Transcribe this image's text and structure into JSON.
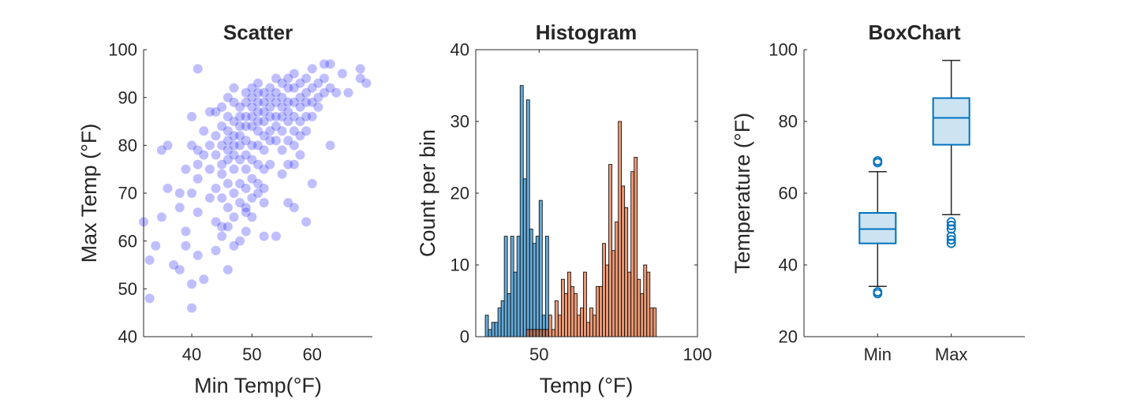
{
  "chart_data": [
    {
      "type": "scatter",
      "title": "Scatter",
      "xlabel": "Min Temp(°F)",
      "ylabel": "Max Temp (°F)",
      "xlim": [
        32,
        70
      ],
      "ylim": [
        40,
        100
      ],
      "xticks": [
        40,
        50,
        60
      ],
      "yticks": [
        40,
        50,
        60,
        70,
        80,
        90,
        100
      ],
      "grid": false,
      "marker_color": "#0000ff",
      "marker_alpha": 0.25,
      "points": [
        [
          32,
          64
        ],
        [
          33,
          48
        ],
        [
          33,
          56
        ],
        [
          34,
          59
        ],
        [
          35,
          65
        ],
        [
          35,
          79
        ],
        [
          36,
          71
        ],
        [
          36,
          80
        ],
        [
          37,
          55
        ],
        [
          38,
          54
        ],
        [
          38,
          70
        ],
        [
          38,
          67
        ],
        [
          39,
          62
        ],
        [
          39,
          75
        ],
        [
          39,
          59
        ],
        [
          40,
          51
        ],
        [
          40,
          46
        ],
        [
          40,
          70
        ],
        [
          40,
          80
        ],
        [
          40,
          86
        ],
        [
          41,
          96
        ],
        [
          41,
          79
        ],
        [
          41,
          76
        ],
        [
          41,
          73
        ],
        [
          41,
          66
        ],
        [
          41,
          57
        ],
        [
          42,
          52
        ],
        [
          42,
          83
        ],
        [
          42,
          78
        ],
        [
          43,
          87
        ],
        [
          43,
          80
        ],
        [
          43,
          75
        ],
        [
          43,
          69
        ],
        [
          44,
          87
        ],
        [
          44,
          82
        ],
        [
          44,
          78
        ],
        [
          44,
          58
        ],
        [
          44,
          64
        ],
        [
          44,
          71
        ],
        [
          45,
          88
        ],
        [
          45,
          84
        ],
        [
          45,
          80
        ],
        [
          45,
          76
        ],
        [
          45,
          74
        ],
        [
          45,
          69
        ],
        [
          45,
          63
        ],
        [
          45,
          61
        ],
        [
          46,
          90
        ],
        [
          46,
          86
        ],
        [
          46,
          83
        ],
        [
          46,
          81
        ],
        [
          46,
          79
        ],
        [
          46,
          77
        ],
        [
          46,
          72
        ],
        [
          46,
          67
        ],
        [
          46,
          63
        ],
        [
          46,
          54
        ],
        [
          47,
          92
        ],
        [
          47,
          89
        ],
        [
          47,
          85
        ],
        [
          47,
          82
        ],
        [
          47,
          80
        ],
        [
          47,
          78
        ],
        [
          47,
          75
        ],
        [
          47,
          70
        ],
        [
          47,
          65
        ],
        [
          47,
          59
        ],
        [
          48,
          88
        ],
        [
          48,
          86
        ],
        [
          48,
          84
        ],
        [
          48,
          82
        ],
        [
          48,
          80
        ],
        [
          48,
          77
        ],
        [
          48,
          72
        ],
        [
          48,
          68
        ],
        [
          48,
          60
        ],
        [
          49,
          91
        ],
        [
          49,
          89
        ],
        [
          49,
          86
        ],
        [
          49,
          84
        ],
        [
          49,
          81
        ],
        [
          49,
          78
        ],
        [
          49,
          75
        ],
        [
          49,
          71
        ],
        [
          49,
          67
        ],
        [
          49,
          66
        ],
        [
          49,
          62
        ],
        [
          50,
          92
        ],
        [
          50,
          90
        ],
        [
          50,
          88
        ],
        [
          50,
          86
        ],
        [
          50,
          84
        ],
        [
          50,
          80
        ],
        [
          50,
          77
        ],
        [
          50,
          73
        ],
        [
          50,
          69
        ],
        [
          50,
          65
        ],
        [
          51,
          93
        ],
        [
          51,
          91
        ],
        [
          51,
          89
        ],
        [
          51,
          87
        ],
        [
          51,
          85
        ],
        [
          51,
          83
        ],
        [
          51,
          80
        ],
        [
          51,
          76
        ],
        [
          51,
          72
        ],
        [
          51,
          70
        ],
        [
          52,
          91
        ],
        [
          52,
          89
        ],
        [
          52,
          87
        ],
        [
          52,
          85
        ],
        [
          52,
          82
        ],
        [
          52,
          79
        ],
        [
          52,
          75
        ],
        [
          52,
          71
        ],
        [
          52,
          68
        ],
        [
          52,
          61
        ],
        [
          53,
          92
        ],
        [
          53,
          90
        ],
        [
          53,
          88
        ],
        [
          53,
          86
        ],
        [
          53,
          83
        ],
        [
          53,
          81
        ],
        [
          53,
          76
        ],
        [
          54,
          94
        ],
        [
          54,
          91
        ],
        [
          54,
          89
        ],
        [
          54,
          86
        ],
        [
          54,
          84
        ],
        [
          54,
          81
        ],
        [
          54,
          61
        ],
        [
          55,
          93
        ],
        [
          55,
          90
        ],
        [
          55,
          88
        ],
        [
          55,
          86
        ],
        [
          55,
          83
        ],
        [
          55,
          79
        ],
        [
          55,
          74
        ],
        [
          56,
          94
        ],
        [
          56,
          92
        ],
        [
          56,
          89
        ],
        [
          56,
          87
        ],
        [
          56,
          85
        ],
        [
          56,
          81
        ],
        [
          56,
          76
        ],
        [
          56,
          68
        ],
        [
          57,
          95
        ],
        [
          57,
          92
        ],
        [
          57,
          89
        ],
        [
          57,
          86
        ],
        [
          57,
          83
        ],
        [
          57,
          80
        ],
        [
          57,
          76
        ],
        [
          57,
          67
        ],
        [
          58,
          93
        ],
        [
          58,
          90
        ],
        [
          58,
          88
        ],
        [
          58,
          85
        ],
        [
          58,
          82
        ],
        [
          58,
          78
        ],
        [
          59,
          94
        ],
        [
          59,
          91
        ],
        [
          59,
          89
        ],
        [
          59,
          86
        ],
        [
          59,
          83
        ],
        [
          59,
          64
        ],
        [
          60,
          96
        ],
        [
          60,
          92
        ],
        [
          60,
          89
        ],
        [
          60,
          86
        ],
        [
          60,
          72
        ],
        [
          61,
          93
        ],
        [
          61,
          90
        ],
        [
          61,
          88
        ],
        [
          62,
          97
        ],
        [
          62,
          94
        ],
        [
          62,
          91
        ],
        [
          63,
          97
        ],
        [
          63,
          92
        ],
        [
          63,
          80
        ],
        [
          64,
          91
        ],
        [
          65,
          95
        ],
        [
          66,
          91
        ],
        [
          68,
          96
        ],
        [
          68,
          94
        ],
        [
          69,
          93
        ]
      ]
    },
    {
      "type": "bar",
      "subtype": "histogram",
      "title": "Histogram",
      "xlabel": "Temp (°F)",
      "ylabel": "Count per bin",
      "xlim": [
        30,
        100
      ],
      "ylim": [
        0,
        40
      ],
      "xticks": [
        50,
        100
      ],
      "yticks": [
        0,
        10,
        20,
        30,
        40
      ],
      "bin_width": 1,
      "series": [
        {
          "color": "#0072bd",
          "alpha": 0.6,
          "bin_start": 33,
          "values": [
            3,
            1,
            2,
            2,
            4,
            5,
            14,
            6,
            14,
            9,
            14,
            35,
            22,
            33,
            15,
            13,
            14,
            19,
            3,
            14
          ]
        },
        {
          "color": "#d95319",
          "alpha": 0.6,
          "bin_start": 46,
          "values": [
            1,
            1,
            1,
            1,
            1,
            1,
            1,
            3,
            1,
            5,
            3,
            8,
            6,
            9,
            7,
            6,
            3,
            4,
            9,
            2,
            4,
            3,
            7,
            7,
            13,
            10,
            24,
            12,
            16,
            30,
            21,
            18,
            9,
            23,
            25,
            8,
            6,
            10,
            9,
            4,
            4
          ]
        }
      ]
    },
    {
      "type": "boxplot",
      "title": "BoxChart",
      "xlabel": "",
      "ylabel": "Temperature (°F)",
      "ylim": [
        20,
        100
      ],
      "yticks": [
        20,
        40,
        60,
        80,
        100
      ],
      "categories": [
        "Min",
        "Max"
      ],
      "color": "#0072bd",
      "boxes": [
        {
          "q1": 46,
          "median": 50,
          "q3": 54.5,
          "whisker_low": 34,
          "whisker_high": 66,
          "outliers": [
            32,
            32.5,
            68.5,
            69
          ]
        },
        {
          "q1": 73.5,
          "median": 81,
          "q3": 86.5,
          "whisker_low": 54,
          "whisker_high": 97,
          "outliers": [
            46,
            47,
            48,
            50,
            51,
            52
          ]
        }
      ]
    }
  ]
}
